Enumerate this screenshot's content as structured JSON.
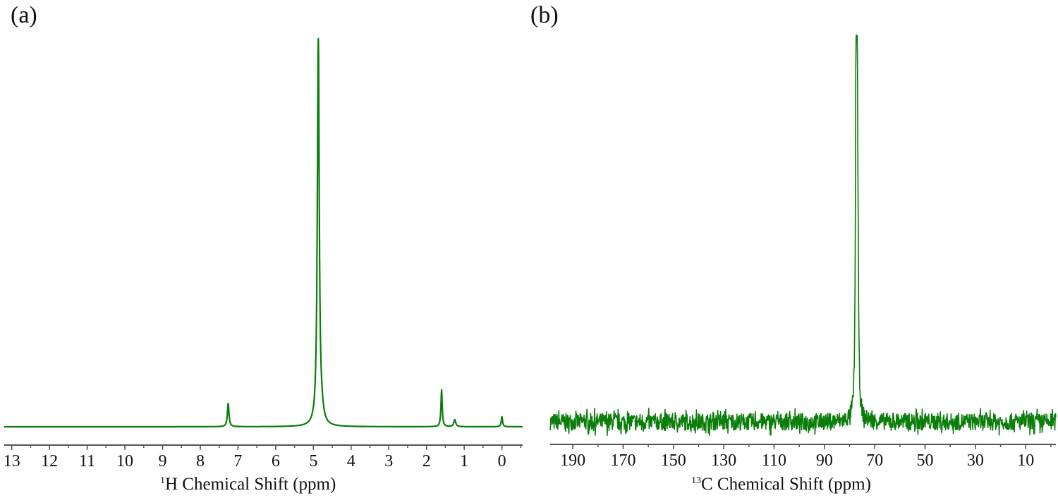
{
  "figure": {
    "panel_a_label": "(a)",
    "panel_b_label": "(b)",
    "line_color": "#0a7d0a",
    "axis_color": "#555555"
  },
  "chart_data": [
    {
      "type": "line",
      "title": "(a)",
      "xlabel_sup": "1",
      "xlabel": "H Chemical Shift (ppm)",
      "ylabel": "",
      "x_reversed": true,
      "xlim": [
        13.2,
        -0.55
      ],
      "xticks": [
        13,
        12,
        11,
        10,
        9,
        8,
        7,
        6,
        5,
        4,
        3,
        2,
        1,
        0
      ],
      "grid": false,
      "peaks": [
        {
          "ppm": 7.26,
          "height": 0.06,
          "width": 0.025
        },
        {
          "ppm": 4.87,
          "height": 1.0,
          "width": 0.03
        },
        {
          "ppm": 4.78,
          "height": 0.02,
          "width": 0.06
        },
        {
          "ppm": 1.6,
          "height": 0.095,
          "width": 0.02
        },
        {
          "ppm": 1.25,
          "height": 0.018,
          "width": 0.03
        },
        {
          "ppm": 0.0,
          "height": 0.026,
          "width": 0.02
        }
      ]
    },
    {
      "type": "line",
      "title": "(b)",
      "xlabel_sup": "13",
      "xlabel": "C Chemical Shift (ppm)",
      "ylabel": "",
      "x_reversed": true,
      "xlim": [
        199,
        -2
      ],
      "xticks": [
        190,
        170,
        150,
        130,
        110,
        90,
        70,
        50,
        30,
        10
      ],
      "grid": false,
      "noise_amplitude": 0.022,
      "peaks": [
        {
          "ppm": 77.4,
          "height": 1.0,
          "width": 0.25
        },
        {
          "ppm": 77.0,
          "height": 0.97,
          "width": 0.25
        },
        {
          "ppm": 76.6,
          "height": 0.18,
          "width": 0.25
        }
      ]
    }
  ]
}
